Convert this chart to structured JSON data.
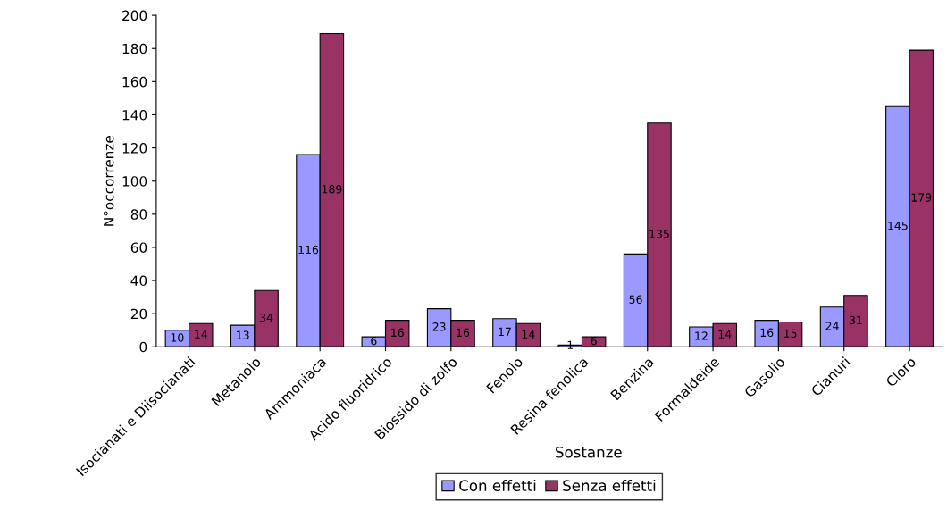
{
  "chart_data": {
    "type": "bar",
    "xlabel": "Sostanze",
    "ylabel": "N°occorrenze",
    "categories": [
      "Isocianati e Diisocianati",
      "Metanolo",
      "Ammoniaca",
      "Acido fluoridrico",
      "Biossido di zolfo",
      "Fenolo",
      "Resina fenolica",
      "Benzina",
      "Formaldeide",
      "Gasolio",
      "Cianuri",
      "Cloro"
    ],
    "series": [
      {
        "name": "Con effetti",
        "color": "#9999ff",
        "values": [
          10,
          13,
          116,
          6,
          23,
          17,
          1,
          56,
          12,
          16,
          24,
          145
        ]
      },
      {
        "name": "Senza effetti",
        "color": "#993366",
        "values": [
          14,
          34,
          189,
          16,
          16,
          14,
          6,
          135,
          14,
          15,
          31,
          179
        ]
      }
    ],
    "ylim": [
      0,
      200
    ],
    "yticks": [
      0,
      20,
      40,
      60,
      80,
      100,
      120,
      140,
      160,
      180,
      200
    ],
    "data_labels": true,
    "grid": false,
    "legend": "bottom"
  }
}
